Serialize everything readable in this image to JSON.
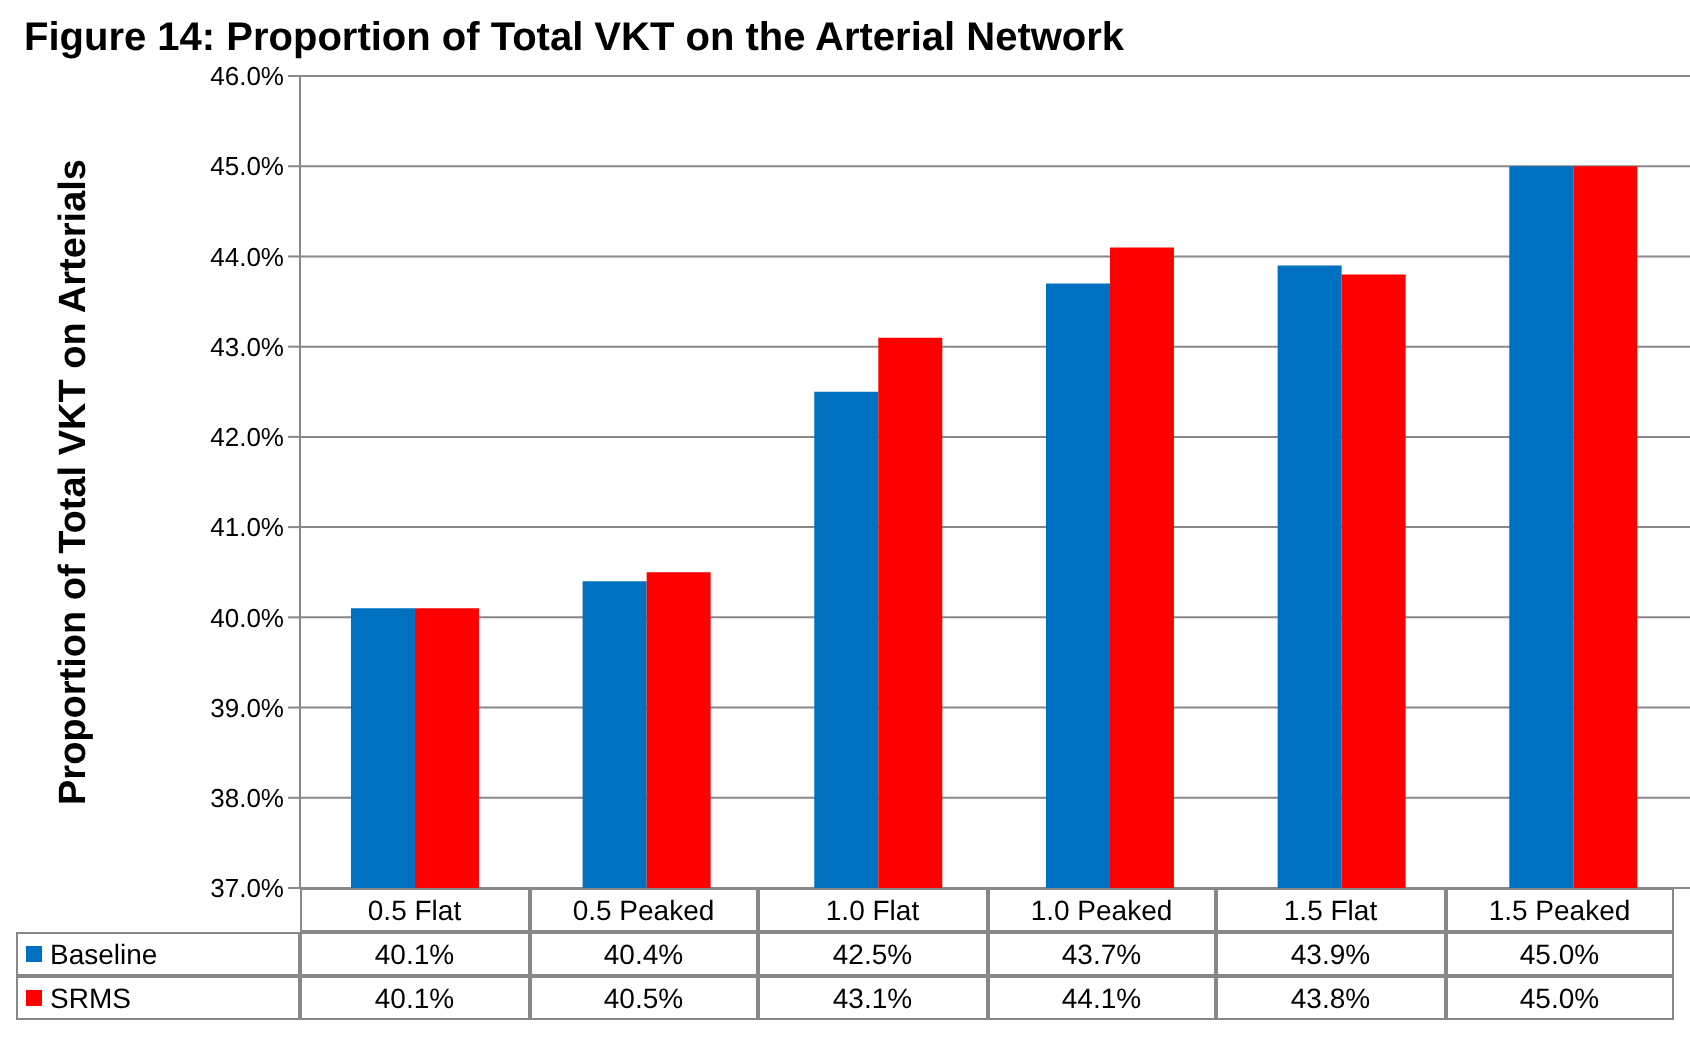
{
  "chart_data": {
    "type": "bar",
    "title": "Figure 14: Proportion of Total VKT on the Arterial Network",
    "ylabel": "Proportion of Total VKT on Arterials",
    "categories": [
      "0.5 Flat",
      "0.5 Peaked",
      "1.0 Flat",
      "1.0 Peaked",
      "1.5 Flat",
      "1.5 Peaked"
    ],
    "series": [
      {
        "name": "Baseline",
        "color": "#0070c0",
        "values": [
          40.1,
          40.4,
          42.5,
          43.7,
          43.9,
          45.0
        ],
        "value_labels": [
          "40.1%",
          "40.4%",
          "42.5%",
          "43.7%",
          "43.9%",
          "45.0%"
        ]
      },
      {
        "name": "SRMS",
        "color": "#ff0000",
        "values": [
          40.1,
          40.5,
          43.1,
          44.1,
          43.8,
          45.0
        ],
        "value_labels": [
          "40.1%",
          "40.5%",
          "43.1%",
          "44.1%",
          "43.8%",
          "45.0%"
        ]
      }
    ],
    "ylim": [
      37,
      46
    ],
    "yticks": [
      {
        "value": 37,
        "label": "37.0%"
      },
      {
        "value": 38,
        "label": "38.0%"
      },
      {
        "value": 39,
        "label": "39.0%"
      },
      {
        "value": 40,
        "label": "40.0%"
      },
      {
        "value": 41,
        "label": "41.0%"
      },
      {
        "value": 42,
        "label": "42.0%"
      },
      {
        "value": 43,
        "label": "43.0%"
      },
      {
        "value": 44,
        "label": "44.0%"
      },
      {
        "value": 45,
        "label": "45.0%"
      },
      {
        "value": 46,
        "label": "46.0%"
      }
    ],
    "grid": "y",
    "legend": "bottom"
  }
}
